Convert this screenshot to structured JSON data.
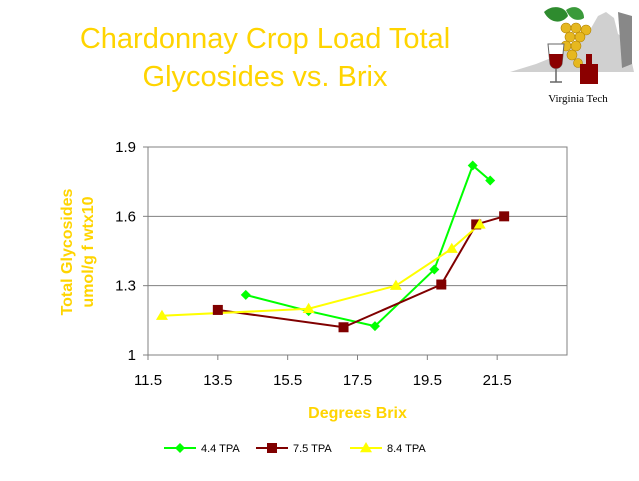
{
  "logo_text": "Virginia Tech",
  "icons": {
    "logo": "virginia-tech-grape-wine-logo-icon"
  },
  "colors": {
    "title": "#ffd400",
    "axis_label": "#ffd400"
  },
  "chart_data": {
    "type": "line",
    "title": [
      "Chardonnay Crop Load Total",
      "Glycosides vs. Brix"
    ],
    "xlabel": "Degrees Brix",
    "ylabel": [
      "Total Glycosides",
      "umol/g f wtx10"
    ],
    "xlim": [
      11.5,
      23.5
    ],
    "ylim": [
      1,
      1.9
    ],
    "xticks": [
      11.5,
      13.5,
      15.5,
      17.5,
      19.5,
      21.5
    ],
    "yticks": [
      1,
      1.3,
      1.6,
      1.9
    ],
    "xtick_labels": [
      "11.5",
      "13.5",
      "15.5",
      "17.5",
      "19.5",
      "21.5"
    ],
    "ytick_labels": [
      "1",
      "1.3",
      "1.6",
      "1.9"
    ],
    "grid": "horizontal",
    "legend": "bottom",
    "series": [
      {
        "name": "4.4 TPA",
        "color": "#00ff00",
        "marker": "diamond",
        "x": [
          14.3,
          16.1,
          18.0,
          19.7,
          20.8,
          21.3
        ],
        "y": [
          1.26,
          1.19,
          1.125,
          1.37,
          1.82,
          1.755
        ]
      },
      {
        "name": "7.5 TPA",
        "color": "#800000",
        "marker": "square",
        "x": [
          13.5,
          17.1,
          19.9,
          20.9,
          21.7
        ],
        "y": [
          1.195,
          1.12,
          1.305,
          1.565,
          1.6
        ]
      },
      {
        "name": "8.4 TPA",
        "color": "#ffff00",
        "marker": "triangle",
        "x": [
          11.9,
          16.1,
          18.6,
          20.2,
          21.0
        ],
        "y": [
          1.17,
          1.2,
          1.3,
          1.46,
          1.565
        ]
      }
    ]
  }
}
